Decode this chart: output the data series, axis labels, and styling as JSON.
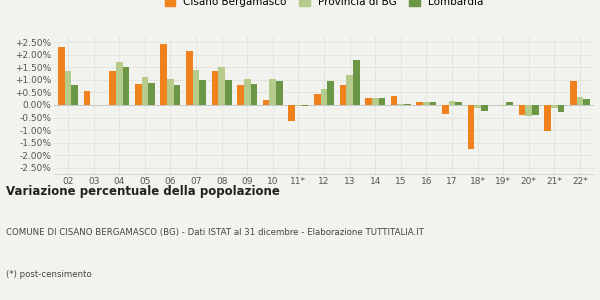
{
  "categories": [
    "02",
    "03",
    "04",
    "05",
    "06",
    "07",
    "08",
    "09",
    "10",
    "11*",
    "12",
    "13",
    "14",
    "15",
    "16",
    "17",
    "18*",
    "19*",
    "20*",
    "21*",
    "22*"
  ],
  "cisano": [
    2.3,
    0.55,
    1.35,
    0.85,
    2.45,
    2.15,
    1.35,
    0.8,
    0.2,
    -0.65,
    0.45,
    0.8,
    0.28,
    0.35,
    0.1,
    -0.35,
    -1.75,
    0.0,
    -0.4,
    -1.05,
    0.95
  ],
  "provincia": [
    1.35,
    0.0,
    1.7,
    1.1,
    1.05,
    1.4,
    1.5,
    1.05,
    1.05,
    -0.05,
    0.65,
    1.2,
    0.28,
    0.05,
    0.12,
    0.15,
    -0.1,
    -0.05,
    -0.45,
    -0.1,
    0.3
  ],
  "lombardia": [
    0.8,
    0.0,
    1.52,
    0.88,
    0.78,
    1.0,
    1.0,
    0.85,
    0.95,
    -0.05,
    0.95,
    1.78,
    0.26,
    0.03,
    0.12,
    0.12,
    -0.22,
    0.1,
    -0.38,
    -0.28,
    0.25
  ],
  "color_cisano": "#f0821e",
  "color_provincia": "#b5cb8b",
  "color_lombardia": "#6a9645",
  "ylim": [
    -2.75,
    2.75
  ],
  "ytick_vals": [
    -2.5,
    -2.0,
    -1.5,
    -1.0,
    -0.5,
    0.0,
    0.5,
    1.0,
    1.5,
    2.0,
    2.5
  ],
  "ytick_labels": [
    "-2.50%",
    "-2.00%",
    "-1.50%",
    "-1.00%",
    "-0.50%",
    "0.00%",
    "+0.50%",
    "+1.00%",
    "+1.50%",
    "+2.00%",
    "+2.50%"
  ],
  "legend_labels": [
    "Cisano Bergamasco",
    "Provincia di BG",
    "Lombardia"
  ],
  "title": "Variazione percentuale della popolazione",
  "subtitle": "COMUNE DI CISANO BERGAMASCO (BG) - Dati ISTAT al 31 dicembre - Elaborazione TUTTITALIA.IT",
  "footnote": "(*) post-censimento",
  "bg_color": "#f2f2ee",
  "grid_color": "#e0e0da"
}
